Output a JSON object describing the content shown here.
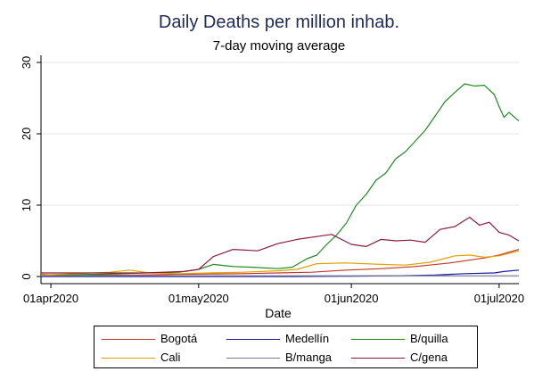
{
  "chart_data": {
    "type": "line",
    "title": "Daily Deaths per million inhab.",
    "subtitle": "7-day moving average",
    "xlabel": "Date",
    "ylabel": "",
    "x_tick_labels": [
      "01apr2020",
      "01may2020",
      "01jun2020",
      "01jul2020"
    ],
    "x_ticks": [
      "2020-04-01",
      "2020-05-01",
      "2020-06-01",
      "2020-07-01"
    ],
    "xlim": [
      "2020-03-30",
      "2020-07-05"
    ],
    "y_ticks": [
      0,
      10,
      20,
      30
    ],
    "ylim": [
      -1,
      31
    ],
    "grid": true,
    "legend": "bottom",
    "legend_columns": 3,
    "series": [
      {
        "name": "Bogotá",
        "color": "#c0392b",
        "points": [
          [
            "2020-03-30",
            0.3
          ],
          [
            "2020-04-05",
            0.1
          ],
          [
            "2020-04-12",
            0.2
          ],
          [
            "2020-04-19",
            0.2
          ],
          [
            "2020-04-26",
            0.3
          ],
          [
            "2020-05-03",
            0.35
          ],
          [
            "2020-05-10",
            0.4
          ],
          [
            "2020-05-17",
            0.5
          ],
          [
            "2020-05-24",
            0.6
          ],
          [
            "2020-05-31",
            0.9
          ],
          [
            "2020-06-07",
            1.1
          ],
          [
            "2020-06-14",
            1.4
          ],
          [
            "2020-06-21",
            1.9
          ],
          [
            "2020-06-28",
            2.6
          ],
          [
            "2020-07-01",
            3.0
          ],
          [
            "2020-07-05",
            3.8
          ]
        ]
      },
      {
        "name": "Medellín",
        "color": "#1a1a9c",
        "points": [
          [
            "2020-03-30",
            0.0
          ],
          [
            "2020-04-10",
            0.0
          ],
          [
            "2020-04-20",
            0.0
          ],
          [
            "2020-05-01",
            0.0
          ],
          [
            "2020-05-10",
            0.0
          ],
          [
            "2020-05-20",
            0.0
          ],
          [
            "2020-06-01",
            0.05
          ],
          [
            "2020-06-10",
            0.1
          ],
          [
            "2020-06-18",
            0.2
          ],
          [
            "2020-06-24",
            0.4
          ],
          [
            "2020-06-30",
            0.5
          ],
          [
            "2020-07-02",
            0.7
          ],
          [
            "2020-07-05",
            0.9
          ]
        ]
      },
      {
        "name": "B/quilla",
        "color": "#1f8c1f",
        "points": [
          [
            "2020-03-30",
            0.2
          ],
          [
            "2020-04-10",
            0.3
          ],
          [
            "2020-04-20",
            0.5
          ],
          [
            "2020-04-27",
            0.6
          ],
          [
            "2020-05-01",
            1.0
          ],
          [
            "2020-05-04",
            1.7
          ],
          [
            "2020-05-08",
            1.4
          ],
          [
            "2020-05-12",
            1.3
          ],
          [
            "2020-05-17",
            1.1
          ],
          [
            "2020-05-20",
            1.3
          ],
          [
            "2020-05-23",
            2.5
          ],
          [
            "2020-05-25",
            3.0
          ],
          [
            "2020-05-27",
            4.5
          ],
          [
            "2020-05-29",
            5.8
          ],
          [
            "2020-05-31",
            7.5
          ],
          [
            "2020-06-02",
            10.0
          ],
          [
            "2020-06-04",
            11.5
          ],
          [
            "2020-06-06",
            13.5
          ],
          [
            "2020-06-08",
            14.5
          ],
          [
            "2020-06-10",
            16.5
          ],
          [
            "2020-06-12",
            17.5
          ],
          [
            "2020-06-14",
            19.0
          ],
          [
            "2020-06-16",
            20.5
          ],
          [
            "2020-06-18",
            22.5
          ],
          [
            "2020-06-20",
            24.5
          ],
          [
            "2020-06-22",
            25.8
          ],
          [
            "2020-06-24",
            27.0
          ],
          [
            "2020-06-26",
            26.7
          ],
          [
            "2020-06-28",
            26.8
          ],
          [
            "2020-06-30",
            25.5
          ],
          [
            "2020-07-01",
            23.8
          ],
          [
            "2020-07-02",
            22.3
          ],
          [
            "2020-07-03",
            23.0
          ],
          [
            "2020-07-05",
            21.8
          ]
        ]
      },
      {
        "name": "Cali",
        "color": "#e69f00",
        "points": [
          [
            "2020-03-30",
            0.2
          ],
          [
            "2020-04-06",
            0.4
          ],
          [
            "2020-04-13",
            0.6
          ],
          [
            "2020-04-17",
            0.9
          ],
          [
            "2020-04-21",
            0.5
          ],
          [
            "2020-04-27",
            0.4
          ],
          [
            "2020-05-03",
            0.5
          ],
          [
            "2020-05-10",
            0.6
          ],
          [
            "2020-05-17",
            0.8
          ],
          [
            "2020-05-21",
            1.0
          ],
          [
            "2020-05-25",
            1.8
          ],
          [
            "2020-05-31",
            1.9
          ],
          [
            "2020-06-07",
            1.7
          ],
          [
            "2020-06-12",
            1.6
          ],
          [
            "2020-06-17",
            2.0
          ],
          [
            "2020-06-22",
            2.9
          ],
          [
            "2020-06-25",
            3.0
          ],
          [
            "2020-06-28",
            2.7
          ],
          [
            "2020-07-01",
            2.9
          ],
          [
            "2020-07-05",
            3.6
          ]
        ]
      },
      {
        "name": "B/manga",
        "color": "#7a7a9a",
        "points": [
          [
            "2020-03-30",
            0.1
          ],
          [
            "2020-04-15",
            0.1
          ],
          [
            "2020-05-01",
            0.1
          ],
          [
            "2020-05-15",
            0.1
          ],
          [
            "2020-06-01",
            0.1
          ],
          [
            "2020-06-15",
            0.1
          ],
          [
            "2020-07-05",
            0.1
          ]
        ]
      },
      {
        "name": "C/gena",
        "color": "#8e1a3c",
        "points": [
          [
            "2020-03-30",
            0.5
          ],
          [
            "2020-04-10",
            0.5
          ],
          [
            "2020-04-20",
            0.5
          ],
          [
            "2020-04-28",
            0.7
          ],
          [
            "2020-05-01",
            1.0
          ],
          [
            "2020-05-04",
            2.8
          ],
          [
            "2020-05-08",
            3.8
          ],
          [
            "2020-05-13",
            3.6
          ],
          [
            "2020-05-17",
            4.6
          ],
          [
            "2020-05-21",
            5.2
          ],
          [
            "2020-05-25",
            5.6
          ],
          [
            "2020-05-28",
            5.9
          ],
          [
            "2020-06-01",
            4.5
          ],
          [
            "2020-06-04",
            4.2
          ],
          [
            "2020-06-07",
            5.2
          ],
          [
            "2020-06-10",
            5.0
          ],
          [
            "2020-06-13",
            5.1
          ],
          [
            "2020-06-16",
            4.8
          ],
          [
            "2020-06-19",
            6.6
          ],
          [
            "2020-06-22",
            7.0
          ],
          [
            "2020-06-25",
            8.3
          ],
          [
            "2020-06-27",
            7.2
          ],
          [
            "2020-06-29",
            7.6
          ],
          [
            "2020-07-01",
            6.2
          ],
          [
            "2020-07-03",
            5.8
          ],
          [
            "2020-07-05",
            5.0
          ]
        ]
      }
    ]
  }
}
